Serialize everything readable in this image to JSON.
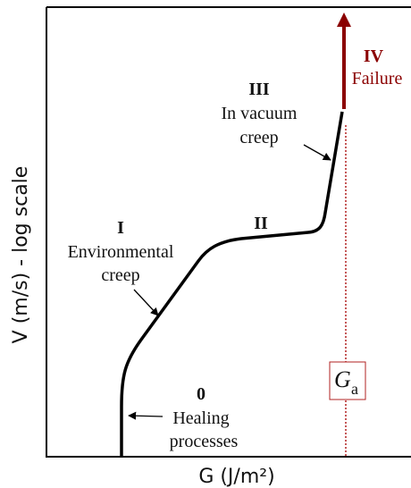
{
  "axes": {
    "x_label": "G (J/m²)",
    "y_label": "V (m/s) - log scale"
  },
  "regions": [
    {
      "numeral": "0",
      "lines": [
        "Healing",
        "processes"
      ]
    },
    {
      "numeral": "I",
      "lines": [
        "Environmental",
        "creep"
      ]
    },
    {
      "numeral": "II"
    },
    {
      "numeral": "III",
      "lines": [
        "In vacuum",
        "creep"
      ]
    },
    {
      "numeral": "IV",
      "lines": [
        "Failure"
      ]
    }
  ],
  "threshold": {
    "symbol": "G",
    "subscript": "a"
  }
}
